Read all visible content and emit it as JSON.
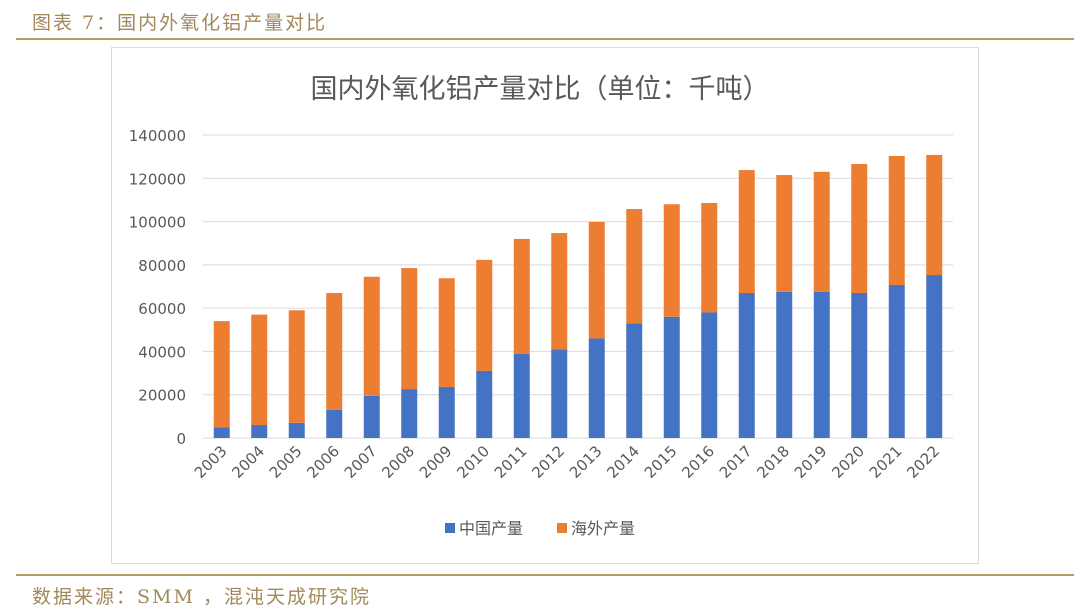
{
  "header": {
    "title": "图表 7：国内外氧化铝产量对比"
  },
  "footer": {
    "source": "数据来源：SMM ，混沌天成研究院"
  },
  "chart_data": {
    "type": "bar",
    "stacked": true,
    "title": "国内外氧化铝产量对比（单位：千吨）",
    "xlabel": "",
    "ylabel": "",
    "ylim": [
      0,
      140000
    ],
    "yticks": [
      0,
      20000,
      40000,
      60000,
      80000,
      100000,
      120000,
      140000
    ],
    "grid": true,
    "legend": "bottom",
    "categories": [
      "2003",
      "2004",
      "2005",
      "2006",
      "2007",
      "2008",
      "2009",
      "2010",
      "2011",
      "2012",
      "2013",
      "2014",
      "2015",
      "2016",
      "2017",
      "2018",
      "2019",
      "2020",
      "2021",
      "2022"
    ],
    "series": [
      {
        "name": "中国产量",
        "color": "#4472C4",
        "values": [
          5000,
          6000,
          7000,
          13000,
          19500,
          22600,
          23600,
          31000,
          38800,
          41000,
          46000,
          53000,
          56000,
          58000,
          67000,
          67500,
          67500,
          67000,
          70700,
          75300
        ]
      },
      {
        "name": "海外产量",
        "color": "#ED7D31",
        "values": [
          49000,
          51000,
          52000,
          54000,
          55000,
          55900,
          50200,
          51300,
          53200,
          53700,
          53800,
          52800,
          52000,
          50600,
          56800,
          54000,
          55500,
          59600,
          59600,
          55500
        ]
      }
    ]
  }
}
